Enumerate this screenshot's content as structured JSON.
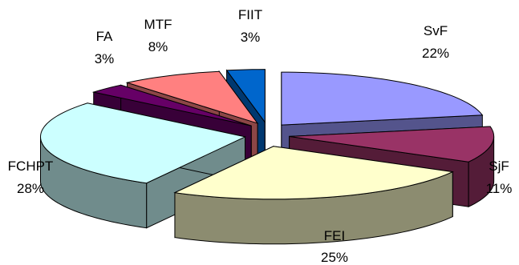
{
  "chart_data": {
    "type": "pie",
    "style": "3d-exploded",
    "title": "",
    "legend": "none",
    "slices": [
      {
        "label": "SvF",
        "value": 22,
        "display": "22%",
        "color": "#9999FF"
      },
      {
        "label": "SjF",
        "value": 11,
        "display": "11%",
        "color": "#993366"
      },
      {
        "label": "FEI",
        "value": 25,
        "display": "25%",
        "color": "#FFFFCC"
      },
      {
        "label": "FCHPT",
        "value": 28,
        "display": "28%",
        "color": "#CCFFFF"
      },
      {
        "label": "FA",
        "value": 3,
        "display": "3%",
        "color": "#660066"
      },
      {
        "label": "MTF",
        "value": 8,
        "display": "8%",
        "color": "#FF8080"
      },
      {
        "label": "FIIT",
        "value": 3,
        "display": "3%",
        "color": "#0066CC"
      }
    ]
  }
}
